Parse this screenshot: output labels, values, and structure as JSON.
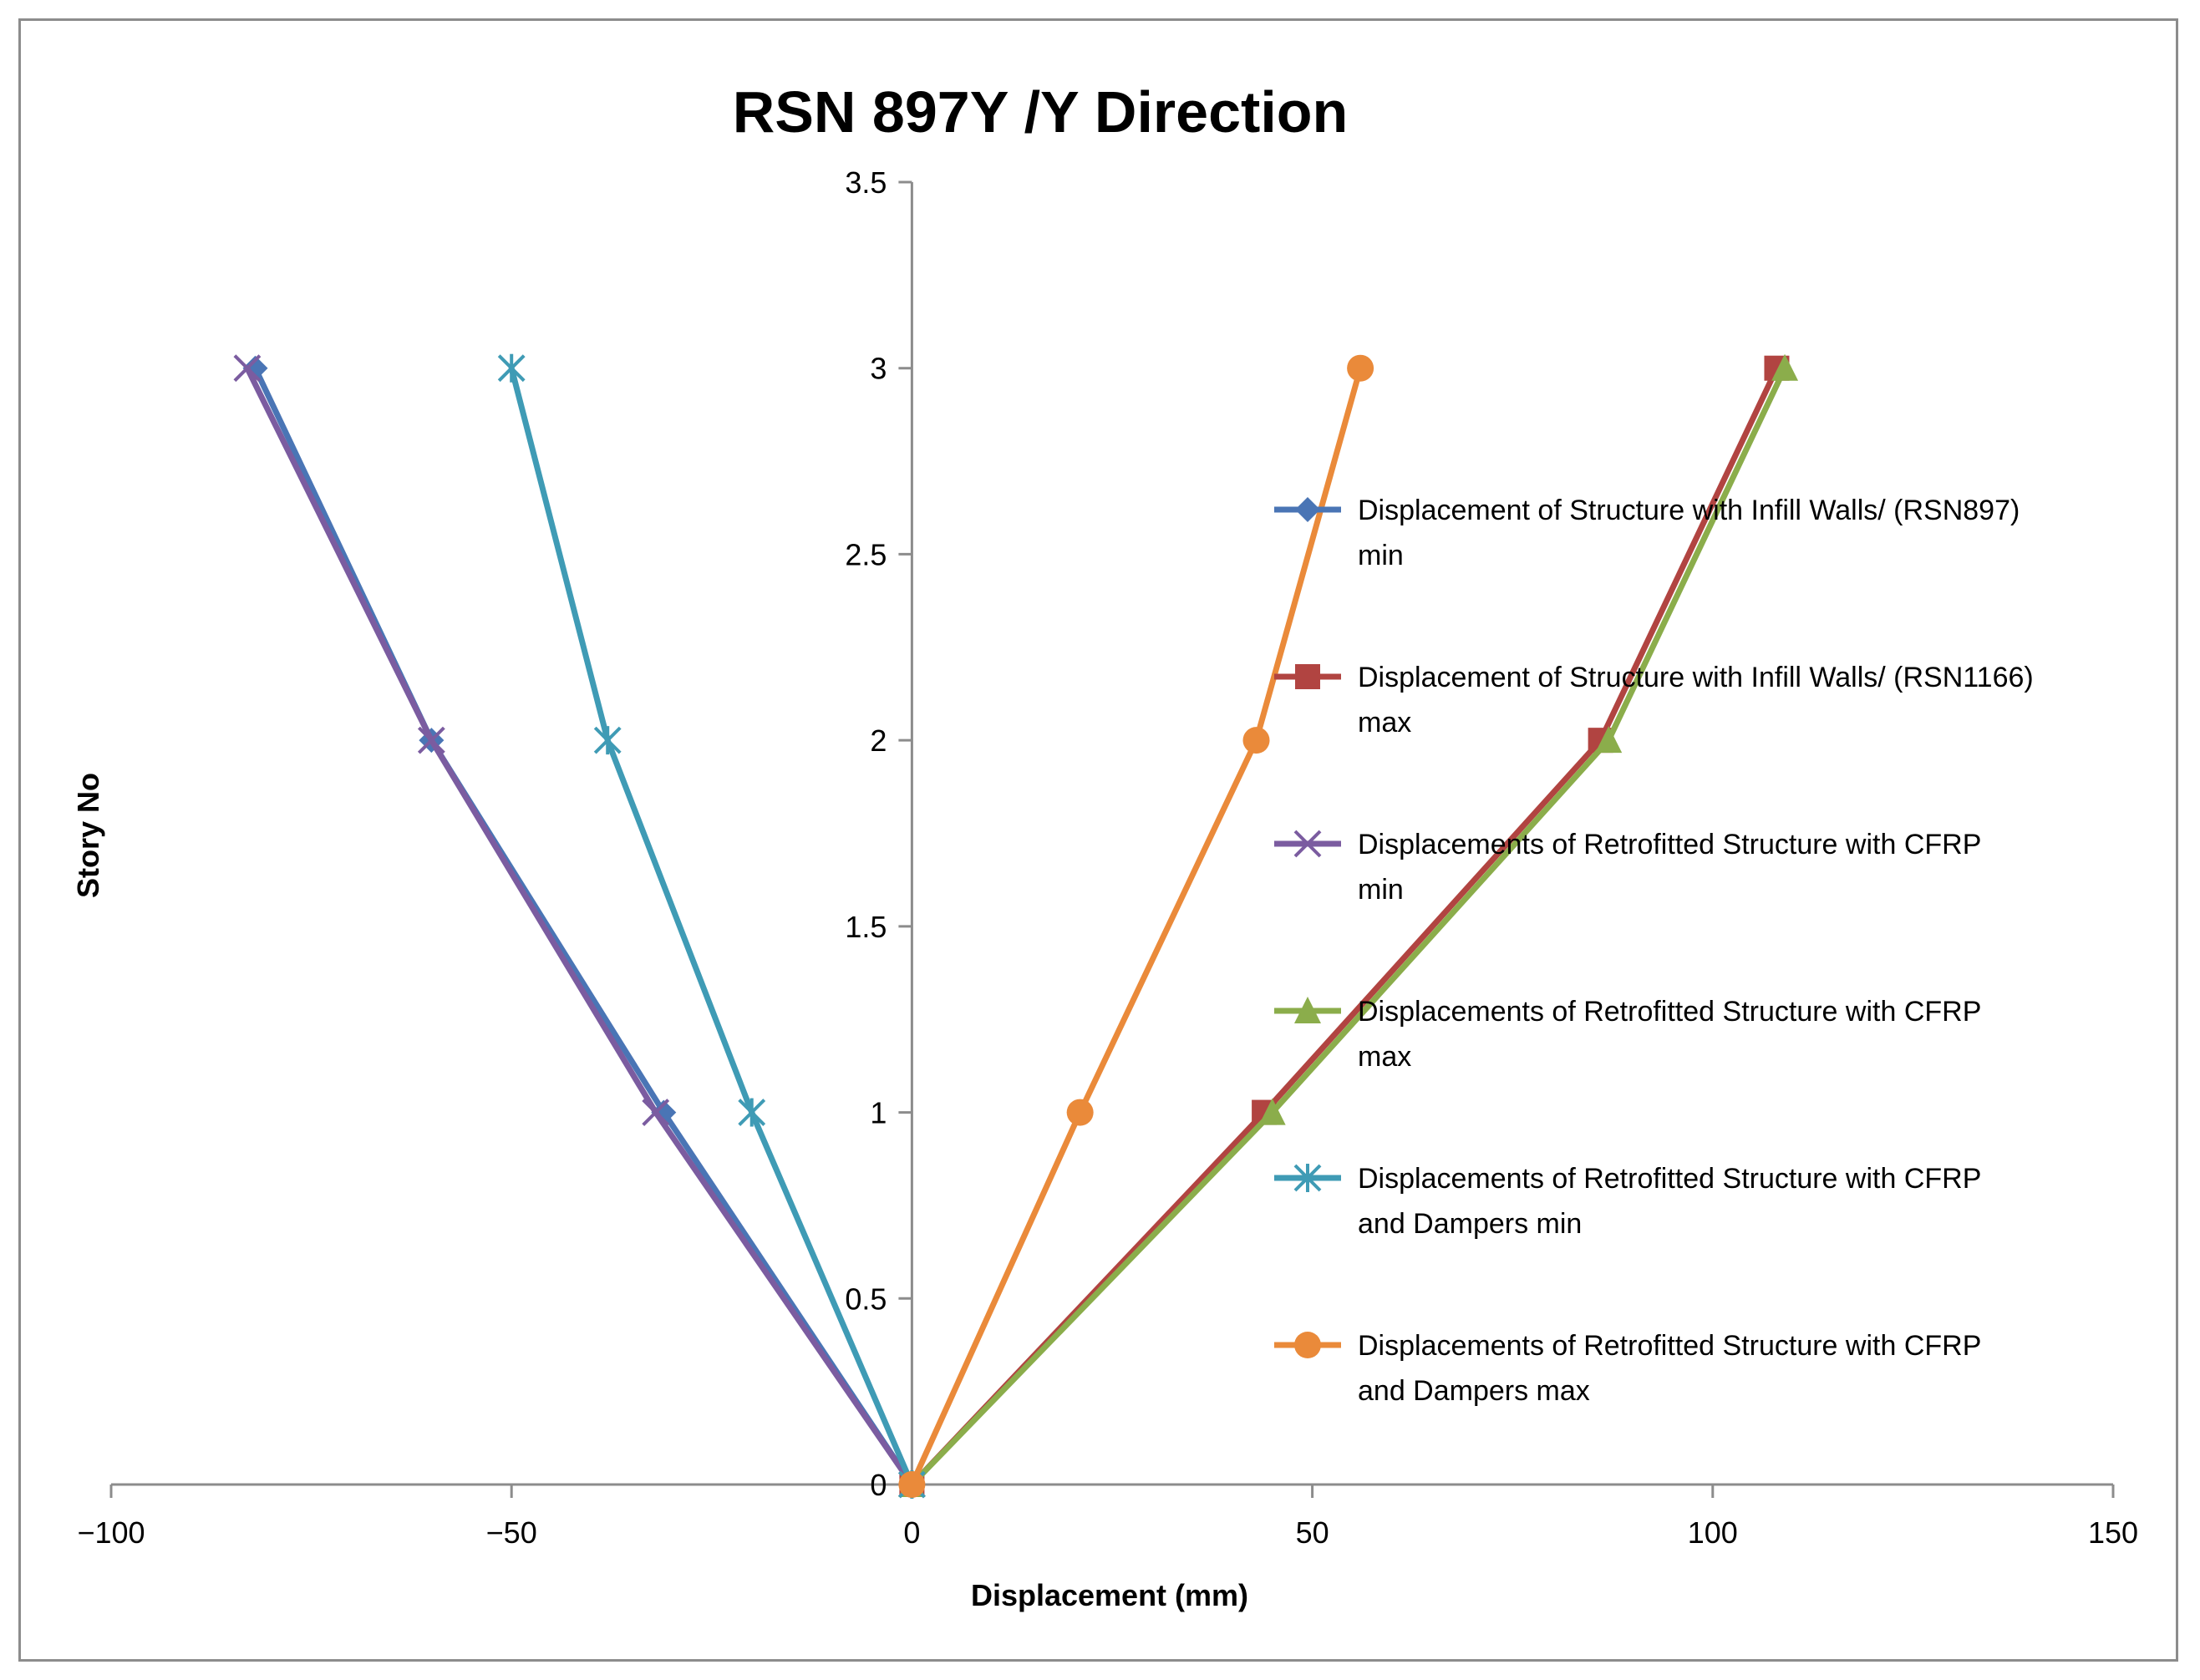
{
  "chart_data": {
    "type": "line",
    "title": "RSN 897Y /Y Direction",
    "xlabel": "Displacement (mm)",
    "ylabel": "Story No",
    "xlim": [
      -100,
      150
    ],
    "ylim": [
      0,
      3.5
    ],
    "xticks": [
      -100,
      -50,
      0,
      50,
      100,
      150
    ],
    "xtick_labels": [
      "−100",
      "−50",
      "0",
      "50",
      "100",
      "150"
    ],
    "yticks": [
      0,
      0.5,
      1,
      1.5,
      2,
      2.5,
      3,
      3.5
    ],
    "ytick_labels": [
      "0",
      "0.5",
      "1",
      "1.5",
      "2",
      "2.5",
      "3",
      "3.5"
    ],
    "grid": false,
    "legend_position": "right",
    "series": [
      {
        "name_lines": [
          "Displacement of Structure with Infill Walls/  (RSN897)",
          "min"
        ],
        "color": "#4a75b5",
        "marker": "diamond",
        "x": [
          0,
          -31,
          -60,
          -82
        ],
        "y": [
          0,
          1,
          2,
          3
        ]
      },
      {
        "name_lines": [
          "Displacement of Structure with Infill Walls/  (RSN1166)",
          "max"
        ],
        "color": "#b14441",
        "marker": "square",
        "x": [
          0,
          44,
          86,
          108
        ],
        "y": [
          0,
          1,
          2,
          3
        ]
      },
      {
        "name_lines": [
          "Displacements of Retrofitted Structure with CFRP",
          "min"
        ],
        "color": "#7b5ca0",
        "marker": "x",
        "x": [
          0,
          -32,
          -60,
          -83
        ],
        "y": [
          0,
          1,
          2,
          3
        ]
      },
      {
        "name_lines": [
          "Displacements of Retrofitted Structure with CFRP",
          "max"
        ],
        "color": "#8bad4b",
        "marker": "triangle",
        "x": [
          0,
          45,
          87,
          109
        ],
        "y": [
          0,
          1,
          2,
          3
        ]
      },
      {
        "name_lines": [
          "Displacements of Retrofitted Structure with CFRP",
          "and Dampers min"
        ],
        "color": "#3f9bb5",
        "marker": "asterisk",
        "x": [
          0,
          -20,
          -38,
          -50
        ],
        "y": [
          0,
          1,
          2,
          3
        ]
      },
      {
        "name_lines": [
          "Displacements of Retrofitted Structure with CFRP",
          "and Dampers max"
        ],
        "color": "#ea8a3a",
        "marker": "circle",
        "x": [
          0,
          21,
          43,
          56
        ],
        "y": [
          0,
          1,
          2,
          3
        ]
      }
    ]
  }
}
